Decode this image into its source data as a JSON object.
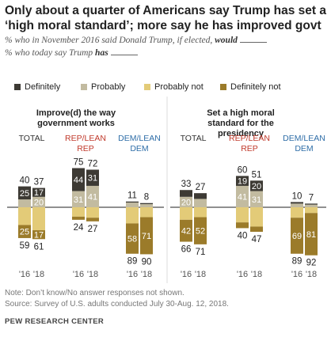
{
  "title": "Only about a quarter of Americans say Trump has set a ‘high moral standard’; more say he has improved govt",
  "subtitle": {
    "line1_prefix": "% who in November 2016 said Donald Trump, if elected, ",
    "line1_bold": "would",
    "line2_prefix": "% who today say Trump ",
    "line2_bold": "has"
  },
  "legend": [
    {
      "label": "Definitely",
      "color": "#3d3a34"
    },
    {
      "label": "Probably",
      "color": "#c2bba0"
    },
    {
      "label": "Probably not",
      "color": "#e3cb78"
    },
    {
      "label": "Definitely not",
      "color": "#9b7b2a"
    }
  ],
  "colors": {
    "definitely": "#3d3a34",
    "probably": "#c2bba0",
    "probably_not": "#e3cb78",
    "definitely_not": "#9b7b2a",
    "rep": "#c0392b",
    "dem": "#2f6ea8",
    "total": "#333333"
  },
  "chart_data": [
    {
      "type": "bar",
      "title": "Improve(d) the way government works",
      "groups": [
        {
          "label": "TOTAL",
          "color_key": "total",
          "years": [
            "'16",
            "'18"
          ],
          "definitely": [
            25,
            17
          ],
          "probably": [
            15,
            20
          ],
          "pos_total": [
            40,
            37
          ],
          "probably_not": [
            34,
            44
          ],
          "definitely_not": [
            25,
            17
          ],
          "neg_total": [
            59,
            61
          ]
        },
        {
          "label": "REP/LEAN REP",
          "color_key": "rep",
          "years": [
            "'16",
            "'18"
          ],
          "definitely": [
            44,
            31
          ],
          "probably": [
            31,
            41
          ],
          "pos_total": [
            75,
            72
          ],
          "probably_not": [
            18,
            20
          ],
          "definitely_not": [
            6,
            7
          ],
          "neg_total": [
            24,
            27
          ]
        },
        {
          "label": "DEM/LEAN DEM",
          "color_key": "dem",
          "years": [
            "'16",
            "'18"
          ],
          "definitely": [
            2,
            2
          ],
          "probably": [
            9,
            6
          ],
          "pos_total": [
            11,
            8
          ],
          "probably_not": [
            31,
            19
          ],
          "definitely_not": [
            58,
            71
          ],
          "neg_total": [
            89,
            90
          ]
        }
      ]
    },
    {
      "type": "bar",
      "title": "Set a high moral standard for the presidency",
      "groups": [
        {
          "label": "TOTAL",
          "color_key": "total",
          "years": [
            "'16",
            "'18"
          ],
          "definitely": [
            13,
            11
          ],
          "probably": [
            20,
            16
          ],
          "pos_total": [
            33,
            27
          ],
          "probably_not": [
            24,
            19
          ],
          "definitely_not": [
            42,
            52
          ],
          "neg_total": [
            66,
            71
          ]
        },
        {
          "label": "REP/LEAN REP",
          "color_key": "rep",
          "years": [
            "'16",
            "'18"
          ],
          "definitely": [
            19,
            20
          ],
          "probably": [
            41,
            31
          ],
          "pos_total": [
            60,
            51
          ],
          "probably_not": [
            29,
            37
          ],
          "definitely_not": [
            11,
            10
          ],
          "neg_total": [
            40,
            47
          ]
        },
        {
          "label": "DEM/LEAN DEM",
          "color_key": "dem",
          "years": [
            "'16",
            "'18"
          ],
          "definitely": [
            3,
            2
          ],
          "probably": [
            7,
            5
          ],
          "pos_total": [
            10,
            7
          ],
          "probably_not": [
            20,
            11
          ],
          "definitely_not": [
            69,
            81
          ],
          "neg_total": [
            89,
            92
          ]
        }
      ]
    }
  ],
  "notes": {
    "note": "Note: Don’t know/No answer responses not shown.",
    "source": "Source: Survey of U.S. adults conducted July 30-Aug. 12, 2018.",
    "brand": "PEW RESEARCH CENTER"
  }
}
